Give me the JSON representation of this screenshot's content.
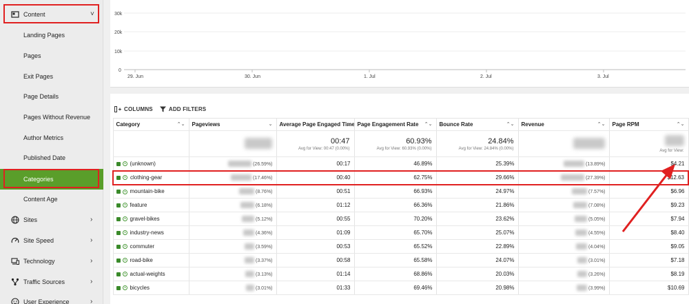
{
  "sidebar": {
    "content_section": {
      "label": "Content",
      "icon": "content-icon",
      "chevron": "˅"
    },
    "sub_items": [
      {
        "label": "Landing Pages"
      },
      {
        "label": "Pages"
      },
      {
        "label": "Exit Pages"
      },
      {
        "label": "Page Details"
      },
      {
        "label": "Pages Without Revenue"
      },
      {
        "label": "Author Metrics"
      },
      {
        "label": "Published Date"
      },
      {
        "label": "Categories",
        "active": true
      },
      {
        "label": "Content Age"
      }
    ],
    "sections": [
      {
        "label": "Sites",
        "icon": "globe-icon",
        "chevron": "›"
      },
      {
        "label": "Site Speed",
        "icon": "speedometer-icon",
        "chevron": "›"
      },
      {
        "label": "Technology",
        "icon": "devices-icon",
        "chevron": "›"
      },
      {
        "label": "Traffic Sources",
        "icon": "traffic-sources-icon",
        "chevron": "›"
      },
      {
        "label": "User Experience",
        "icon": "user-experience-icon",
        "chevron": "›"
      }
    ],
    "active_color": "#5a9e2a",
    "highlight_color": "#e02020"
  },
  "chart": {
    "y_ticks": [
      "30k",
      "20k",
      "10k",
      "0"
    ],
    "x_ticks": [
      "29. Jun",
      "30. Jun",
      "1. Jul",
      "2. Jul",
      "3. Jul"
    ]
  },
  "toolbar": {
    "columns_label": "COLUMNS",
    "filters_label": "ADD FILTERS"
  },
  "table": {
    "headers": [
      {
        "label": "Category",
        "sort": "⌃⌄"
      },
      {
        "label": "Pageviews",
        "sort": "⌄"
      },
      {
        "label": "Average Page Engaged Time",
        "sort": "⌃⌄"
      },
      {
        "label": "Page Engagement Rate",
        "sort": "⌃⌄"
      },
      {
        "label": "Bounce Rate",
        "sort": "⌃⌄"
      },
      {
        "label": "Revenue",
        "sort": "⌃⌄"
      },
      {
        "label": "Page RPM",
        "sort": "⌃⌄"
      }
    ],
    "totals": {
      "avg_engaged_time": "00:47",
      "avg_engaged_time_sub": "Avg for View: 00:47 (0.00%)",
      "engagement_rate": "60.93%",
      "engagement_rate_sub": "Avg for View: 60.93% (0.00%)",
      "bounce_rate": "24.84%",
      "bounce_rate_sub": "Avg for View: 24.84% (0.00%)",
      "rpm_sub": "Avg for View:"
    },
    "rows": [
      {
        "category": "(unknown)",
        "pv_pct": "(26.59%)",
        "time": "00:17",
        "eng": "46.89%",
        "bounce": "25.39%",
        "rev_pct": "(13.89%)",
        "rpm": "$4.21"
      },
      {
        "category": "clothing-gear",
        "pv_pct": "(17.46%)",
        "time": "00:40",
        "eng": "62.75%",
        "bounce": "29.66%",
        "rev_pct": "(27.39%)",
        "rpm": "$12.63"
      },
      {
        "category": "mountain-bike",
        "pv_pct": "(8.76%)",
        "time": "00:51",
        "eng": "66.93%",
        "bounce": "24.97%",
        "rev_pct": "(7.57%)",
        "rpm": "$6.96"
      },
      {
        "category": "feature",
        "pv_pct": "(6.18%)",
        "time": "01:12",
        "eng": "66.36%",
        "bounce": "21.86%",
        "rev_pct": "(7.08%)",
        "rpm": "$9.23"
      },
      {
        "category": "gravel-bikes",
        "pv_pct": "(5.12%)",
        "time": "00:55",
        "eng": "70.20%",
        "bounce": "23.62%",
        "rev_pct": "(5.05%)",
        "rpm": "$7.94"
      },
      {
        "category": "industry-news",
        "pv_pct": "(4.36%)",
        "time": "01:09",
        "eng": "65.70%",
        "bounce": "25.07%",
        "rev_pct": "(4.55%)",
        "rpm": "$8.40"
      },
      {
        "category": "commuter",
        "pv_pct": "(3.59%)",
        "time": "00:53",
        "eng": "65.52%",
        "bounce": "22.89%",
        "rev_pct": "(4.04%)",
        "rpm": "$9.05"
      },
      {
        "category": "road-bike",
        "pv_pct": "(3.37%)",
        "time": "00:58",
        "eng": "65.58%",
        "bounce": "24.07%",
        "rev_pct": "(3.01%)",
        "rpm": "$7.18"
      },
      {
        "category": "actual-weights",
        "pv_pct": "(3.13%)",
        "time": "01:14",
        "eng": "68.86%",
        "bounce": "20.03%",
        "rev_pct": "(3.26%)",
        "rpm": "$8.19"
      },
      {
        "category": "bicycles",
        "pv_pct": "(3.01%)",
        "time": "01:33",
        "eng": "69.46%",
        "bounce": "20.98%",
        "rev_pct": "(3.99%)",
        "rpm": "$10.69"
      }
    ],
    "highlighted_row": 1,
    "arrow_color": "#e02020"
  }
}
